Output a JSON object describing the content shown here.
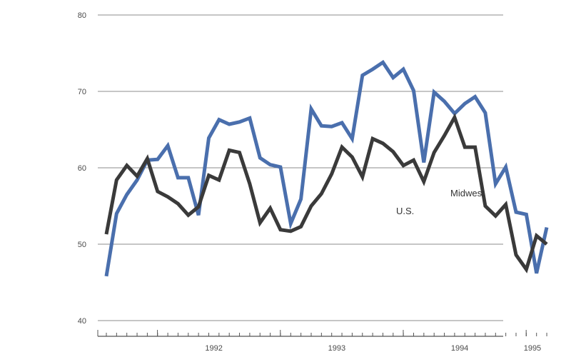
{
  "chart_data": {
    "type": "line",
    "title": "",
    "xlabel": "",
    "ylabel": "",
    "ylim": [
      40,
      80
    ],
    "yticks": [
      "40",
      "50",
      "60",
      "70",
      "80"
    ],
    "x_year_labels": [
      "1992",
      "1993",
      "1994",
      "1995"
    ],
    "x_start": "1991-08",
    "x_end": "1995-03",
    "grid": "horizontal",
    "series": [
      {
        "name": "Midwest",
        "color": "#4a6fad",
        "values": [
          45.8,
          54.0,
          56.5,
          58.4,
          61.0,
          61.1,
          62.9,
          58.7,
          58.7,
          53.8,
          63.9,
          66.3,
          65.7,
          66.0,
          66.5,
          61.3,
          60.4,
          60.1,
          52.7,
          55.9,
          67.7,
          65.5,
          65.4,
          65.9,
          63.8,
          72.1,
          72.9,
          73.8,
          71.8,
          72.9,
          70.1,
          60.7,
          69.9,
          68.7,
          67.1,
          68.4,
          69.3,
          67.2,
          57.9,
          60.1,
          54.2,
          53.9,
          46.2,
          52.2
        ]
      },
      {
        "name": "U.S.",
        "color": "#3a3a3a",
        "values": [
          51.3,
          58.4,
          60.3,
          58.9,
          61.2,
          56.9,
          56.2,
          55.3,
          53.8,
          54.9,
          59.0,
          58.4,
          62.3,
          62.0,
          57.9,
          52.8,
          54.7,
          51.9,
          51.7,
          52.3,
          55.0,
          56.6,
          59.2,
          62.7,
          61.4,
          58.8,
          63.8,
          63.2,
          62.1,
          60.3,
          61.0,
          58.2,
          62.0,
          64.2,
          66.6,
          62.7,
          62.7,
          55.0,
          53.7,
          55.2,
          48.6,
          46.7,
          51.1,
          50.0
        ]
      }
    ]
  }
}
